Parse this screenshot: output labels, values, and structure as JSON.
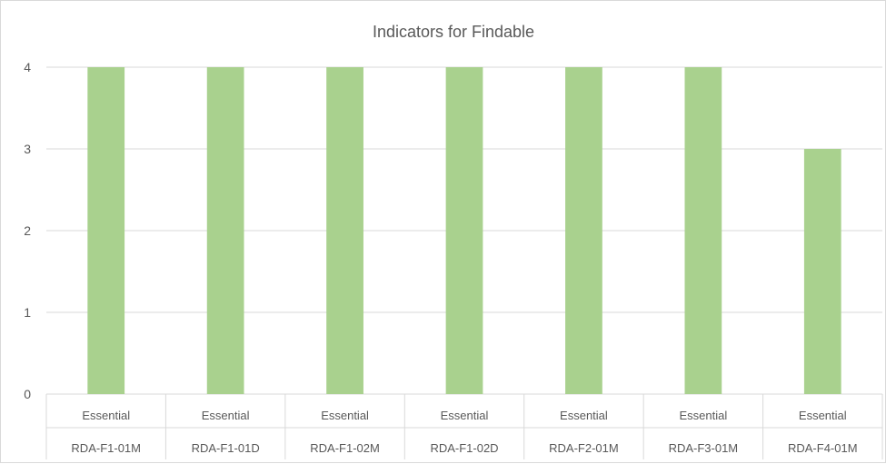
{
  "chart_data": {
    "type": "bar",
    "title": "Indicators for Findable",
    "categories": [
      [
        "Essential",
        "RDA-F1-01M"
      ],
      [
        "Essential",
        "RDA-F1-01D"
      ],
      [
        "Essential",
        "RDA-F1-02M"
      ],
      [
        "Essential",
        "RDA-F1-02D"
      ],
      [
        "Essential",
        "RDA-F2-01M"
      ],
      [
        "Essential",
        "RDA-F3-01M"
      ],
      [
        "Essential",
        "RDA-F4-01M"
      ]
    ],
    "values": [
      4,
      4,
      4,
      4,
      4,
      4,
      3
    ],
    "ylim": [
      0,
      4
    ],
    "yticks": [
      0,
      1,
      2,
      3,
      4
    ],
    "grid": true,
    "bar_color": "#a9d18e"
  }
}
